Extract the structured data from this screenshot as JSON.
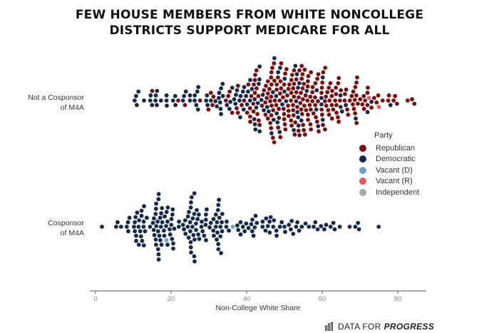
{
  "title": {
    "line1": "FEW HOUSE MEMBERS FROM WHITE NONCOLLEGE",
    "line2": "DISTRICTS SUPPORT MEDICARE FOR ALL"
  },
  "brand": {
    "prefix": "DATA FOR",
    "emphasis": "PROGRESS",
    "icon": "bar-chart-icon"
  },
  "legend": {
    "title": "Party",
    "items": [
      {
        "label": "Republican",
        "color": "#7a0c0c"
      },
      {
        "label": "Democratic",
        "color": "#13294b"
      },
      {
        "label": "Vacant (D)",
        "color": "#6f9fcc"
      },
      {
        "label": "Vacant (R)",
        "color": "#e8555a"
      },
      {
        "label": "Independent",
        "color": "#a9a9a9"
      }
    ]
  },
  "chart_data": {
    "type": "scatter",
    "subtype": "beeswarm",
    "title": "FEW HOUSE MEMBERS FROM WHITE NONCOLLEGE DISTRICTS SUPPORT MEDICARE FOR ALL",
    "xlabel": "Non-College White Share",
    "ylabel": "",
    "xlim": [
      0,
      87
    ],
    "xticks": [
      0,
      20,
      40,
      60,
      80
    ],
    "grid": false,
    "legend_position": "right",
    "categories": [
      "Not a Cosponsor of M4A",
      "Cosponsor of M4A"
    ],
    "category_labels": [
      {
        "line1": "Not a Cosponsor",
        "line2": "of M4A"
      },
      {
        "line1": "Cosponsor",
        "line2": "of M4A"
      }
    ],
    "series": [
      {
        "name": "Republican",
        "color": "#7a0c0c",
        "counts_per_5pts": {
          "Not a Cosponsor of M4A": [
            [
              15,
              1
            ],
            [
              20,
              2
            ],
            [
              25,
              2
            ],
            [
              30,
              4
            ],
            [
              35,
              8
            ],
            [
              40,
              22
            ],
            [
              45,
              40
            ],
            [
              50,
              42
            ],
            [
              55,
              36
            ],
            [
              60,
              30
            ],
            [
              65,
              18
            ],
            [
              70,
              12
            ],
            [
              75,
              6
            ],
            [
              80,
              3
            ],
            [
              85,
              1
            ]
          ],
          "Cosponsor of M4A": []
        }
      },
      {
        "name": "Democratic",
        "color": "#13294b",
        "counts_per_5pts": {
          "Not a Cosponsor of M4A": [
            [
              10,
              8
            ],
            [
              15,
              8
            ],
            [
              20,
              7
            ],
            [
              25,
              10
            ],
            [
              30,
              12
            ],
            [
              35,
              14
            ],
            [
              40,
              18
            ],
            [
              45,
              14
            ],
            [
              50,
              12
            ],
            [
              55,
              6
            ],
            [
              60,
              4
            ],
            [
              65,
              3
            ],
            [
              70,
              2
            ],
            [
              75,
              1
            ]
          ],
          "Cosponsor of M4A": [
            [
              0,
              1
            ],
            [
              5,
              7
            ],
            [
              10,
              22
            ],
            [
              15,
              35
            ],
            [
              20,
              18
            ],
            [
              25,
              32
            ],
            [
              30,
              24
            ],
            [
              35,
              8
            ],
            [
              40,
              10
            ],
            [
              45,
              12
            ],
            [
              50,
              10
            ],
            [
              55,
              6
            ],
            [
              60,
              6
            ],
            [
              65,
              4
            ],
            [
              70,
              1
            ]
          ]
        }
      },
      {
        "name": "Vacant (D)",
        "color": "#6f9fcc",
        "counts_per_5pts": {
          "Not a Cosponsor of M4A": [],
          "Cosponsor of M4A": [
            [
              15,
              1
            ],
            [
              35,
              1
            ]
          ]
        }
      },
      {
        "name": "Vacant (R)",
        "color": "#e8555a",
        "counts_per_5pts": {
          "Not a Cosponsor of M4A": [
            [
              70,
              2
            ]
          ],
          "Cosponsor of M4A": []
        }
      },
      {
        "name": "Independent",
        "color": "#a9a9a9",
        "counts_per_5pts": {
          "Not a Cosponsor of M4A": [],
          "Cosponsor of M4A": []
        }
      }
    ]
  }
}
